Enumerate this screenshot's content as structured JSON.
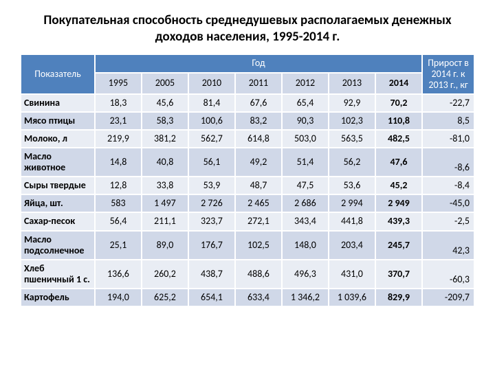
{
  "title": "Покупательная способность среднедушевых располагаемых денежных доходов населения, 1995-2014 г.",
  "table": {
    "indicator_header": "Показатель",
    "year_group_header": "Год",
    "delta_header": "Прирост в 2014 г. к 2013 г., кг",
    "years": [
      "1995",
      "2005",
      "2010",
      "2011",
      "2012",
      "2013",
      "2014"
    ],
    "rows": [
      {
        "label": "Свинина",
        "vals": [
          "18,3",
          "45,6",
          "81,4",
          "67,6",
          "65,4",
          "92,9",
          "70,2"
        ],
        "delta": "-22,7"
      },
      {
        "label": "Мясо птицы",
        "vals": [
          "23,1",
          "58,3",
          "100,6",
          "83,2",
          "90,3",
          "102,3",
          "110,8"
        ],
        "delta": "8,5"
      },
      {
        "label": "Молоко, л",
        "vals": [
          "219,9",
          "381,2",
          "562,7",
          "614,8",
          "503,0",
          "563,5",
          "482,5"
        ],
        "delta": "-81,0"
      },
      {
        "label": "Масло животное",
        "vals": [
          "14,8",
          "40,8",
          "56,1",
          "49,2",
          "51,4",
          "56,2",
          "47,6"
        ],
        "delta": "-8,6"
      },
      {
        "label": "Сыры твердые",
        "vals": [
          "12,8",
          "33,8",
          "53,9",
          "48,7",
          "47,5",
          "53,6",
          "45,2"
        ],
        "delta": "-8,4"
      },
      {
        "label": "Яйца, шт.",
        "vals": [
          "583",
          "1 497",
          "2 726",
          "2 465",
          "2 686",
          "2 994",
          "2 949"
        ],
        "delta": "-45,0"
      },
      {
        "label": "Сахар-песок",
        "vals": [
          "56,4",
          "211,1",
          "323,7",
          "272,1",
          "343,4",
          "441,8",
          "439,3"
        ],
        "delta": "-2,5"
      },
      {
        "label": "Масло подсолнечное",
        "vals": [
          "25,1",
          "89,0",
          "176,7",
          "102,5",
          "148,0",
          "203,4",
          "245,7"
        ],
        "delta": "42,3"
      },
      {
        "label": "Хлеб пшеничный 1 с.",
        "vals": [
          "136,6",
          "260,2",
          "438,7",
          "488,6",
          "496,3",
          "431,0",
          "370,7"
        ],
        "delta": "-60,3"
      },
      {
        "label": "Картофель",
        "vals": [
          "194,0",
          "625,2",
          "654,1",
          "633,4",
          "1 346,2",
          "1 039,6",
          "829,9"
        ],
        "delta": "-209,7"
      }
    ],
    "colors": {
      "header_bg": "#4f81bd",
      "header_fg": "#ffffff",
      "band_odd": "#e9edf4",
      "band_even": "#d0d8e8",
      "border": "#ffffff"
    }
  }
}
